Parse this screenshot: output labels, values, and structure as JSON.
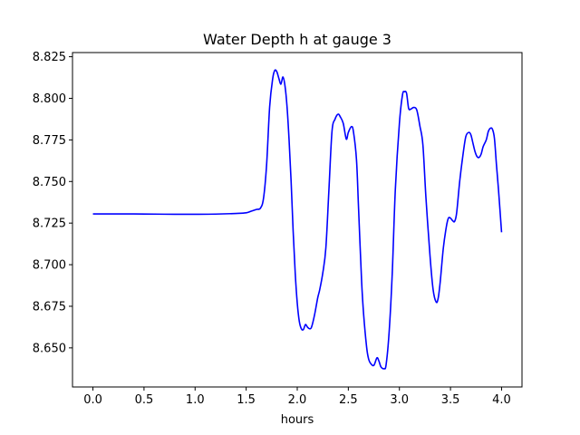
{
  "chart_data": {
    "type": "line",
    "title": "Water Depth h at gauge 3",
    "xlabel": "hours",
    "ylabel": "",
    "xlim": [
      -0.2,
      4.2
    ],
    "ylim": [
      8.6265,
      8.8275
    ],
    "grid": false,
    "xticks": [
      0.0,
      0.5,
      1.0,
      1.5,
      2.0,
      2.5,
      3.0,
      3.5,
      4.0
    ],
    "xtick_labels": [
      "0.0",
      "0.5",
      "1.0",
      "1.5",
      "2.0",
      "2.5",
      "3.0",
      "3.5",
      "4.0"
    ],
    "yticks": [
      8.65,
      8.675,
      8.7,
      8.725,
      8.75,
      8.775,
      8.8,
      8.825
    ],
    "ytick_labels": [
      "8.650",
      "8.675",
      "8.700",
      "8.725",
      "8.750",
      "8.775",
      "8.800",
      "8.825"
    ],
    "series": [
      {
        "color": "#0000ff",
        "x": [
          0.0,
          0.2,
          0.4,
          0.6,
          0.8,
          1.0,
          1.2,
          1.4,
          1.5,
          1.55,
          1.6,
          1.64,
          1.67,
          1.7,
          1.73,
          1.76,
          1.78,
          1.8,
          1.82,
          1.84,
          1.86,
          1.88,
          1.9,
          1.92,
          1.94,
          1.96,
          1.98,
          2.0,
          2.02,
          2.04,
          2.06,
          2.08,
          2.1,
          2.12,
          2.14,
          2.17,
          2.2,
          2.22,
          2.25,
          2.28,
          2.31,
          2.34,
          2.37,
          2.4,
          2.42,
          2.45,
          2.48,
          2.5,
          2.53,
          2.55,
          2.58,
          2.6,
          2.63,
          2.65,
          2.68,
          2.7,
          2.72,
          2.75,
          2.78,
          2.8,
          2.82,
          2.85,
          2.87,
          2.9,
          2.93,
          2.96,
          3.0,
          3.03,
          3.05,
          3.07,
          3.09,
          3.11,
          3.14,
          3.17,
          3.2,
          3.23,
          3.26,
          3.3,
          3.33,
          3.36,
          3.38,
          3.4,
          3.43,
          3.46,
          3.48,
          3.5,
          3.52,
          3.54,
          3.56,
          3.59,
          3.62,
          3.65,
          3.68,
          3.7,
          3.72,
          3.74,
          3.76,
          3.78,
          3.8,
          3.82,
          3.85,
          3.87,
          3.89,
          3.91,
          3.93,
          3.95,
          3.97,
          4.0
        ],
        "y": [
          8.7305,
          8.7305,
          8.7305,
          8.7304,
          8.7303,
          8.7303,
          8.7304,
          8.7308,
          8.7312,
          8.7322,
          8.7332,
          8.734,
          8.74,
          8.76,
          8.795,
          8.812,
          8.8168,
          8.816,
          8.812,
          8.8085,
          8.8128,
          8.8075,
          8.795,
          8.775,
          8.75,
          8.72,
          8.695,
          8.677,
          8.666,
          8.6615,
          8.661,
          8.664,
          8.6625,
          8.6615,
          8.6625,
          8.67,
          8.68,
          8.685,
          8.695,
          8.71,
          8.745,
          8.78,
          8.7875,
          8.7905,
          8.789,
          8.785,
          8.7755,
          8.7795,
          8.783,
          8.78,
          8.763,
          8.734,
          8.69,
          8.67,
          8.65,
          8.643,
          8.6405,
          8.6395,
          8.644,
          8.642,
          8.6385,
          8.6375,
          8.64,
          8.66,
          8.695,
          8.745,
          8.785,
          8.802,
          8.804,
          8.803,
          8.794,
          8.7935,
          8.7945,
          8.793,
          8.7835,
          8.772,
          8.74,
          8.705,
          8.685,
          8.6775,
          8.68,
          8.69,
          8.71,
          8.723,
          8.728,
          8.728,
          8.7265,
          8.726,
          8.731,
          8.75,
          8.765,
          8.777,
          8.7795,
          8.778,
          8.773,
          8.768,
          8.765,
          8.7645,
          8.7665,
          8.771,
          8.775,
          8.78,
          8.782,
          8.7815,
          8.776,
          8.76,
          8.745,
          8.7195
        ]
      }
    ]
  }
}
